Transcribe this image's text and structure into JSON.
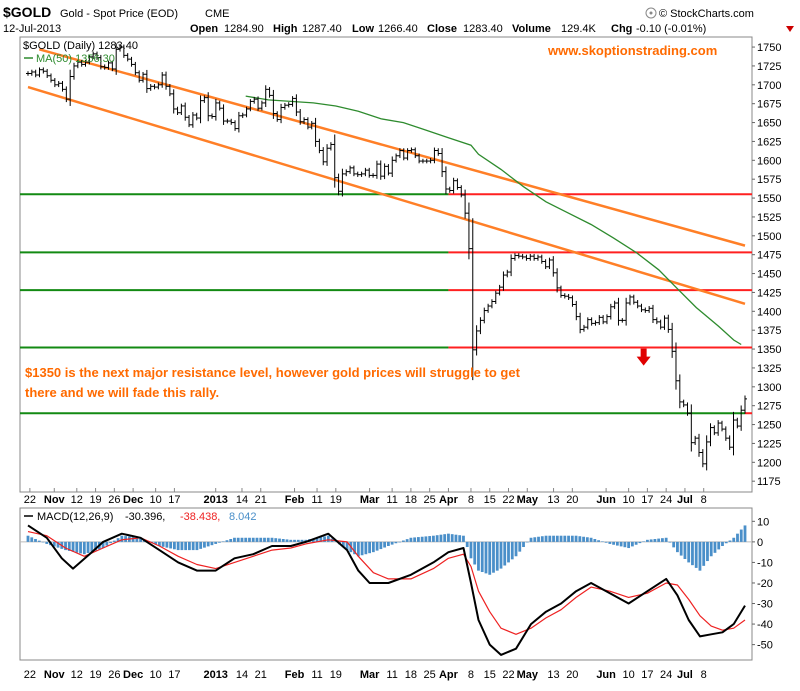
{
  "header": {
    "symbol": "$GOLD",
    "name": "Gold - Spot Price (EOD)",
    "exchange": "CME",
    "brand": "© StockCharts.com",
    "date": "12-Jul-2013",
    "open_label": "Open",
    "open": "1284.90",
    "high_label": "High",
    "high": "1287.40",
    "low_label": "Low",
    "low": "1266.40",
    "close_label": "Close",
    "close": "1283.40",
    "volume_label": "Volume",
    "volume": "129.4K",
    "chg_label": "Chg",
    "chg": "-0.10 (-0.01%)"
  },
  "legend": {
    "price": "$GOLD (Daily) 1283.40",
    "ma": "MA(50) 1356.30",
    "macd_name": "MACD(12,26,9)",
    "macd_val": "-30.396,",
    "signal_val": "-38.438,",
    "hist_val": "8.042"
  },
  "watermark": "www.skoptionstrading.com",
  "annotation": {
    "line1": "$1350 is the next major resistance level, however gold prices will struggle to get",
    "line2": "there and we will fade this rally."
  },
  "colors": {
    "price": "#000000",
    "ma": "#2e8b2e",
    "trend": "#ff7f27",
    "support": "#138a13",
    "resistance": "#ff2020",
    "arrow": "#e00000",
    "macd": "#000000",
    "signal": "#ee2222",
    "hist": "#4a8fc9",
    "annotation": "#ff6a00"
  },
  "chart_data": [
    {
      "type": "line",
      "title": "$GOLD (Daily) 1283.40",
      "y_axis": {
        "min": 1162,
        "max": 1762,
        "position": "right",
        "ticks": [
          1175,
          1200,
          1225,
          1250,
          1275,
          1300,
          1325,
          1350,
          1375,
          1400,
          1425,
          1450,
          1475,
          1500,
          1525,
          1550,
          1575,
          1600,
          1625,
          1650,
          1675,
          1700,
          1725,
          1750
        ]
      },
      "x_axis_labels": [
        {
          "label": "22",
          "t": 0.5
        },
        {
          "label": "Nov",
          "t": 7,
          "bold": true
        },
        {
          "label": "12",
          "t": 13
        },
        {
          "label": "19",
          "t": 18
        },
        {
          "label": "26",
          "t": 23
        },
        {
          "label": "Dec",
          "t": 28,
          "bold": true
        },
        {
          "label": "10",
          "t": 34
        },
        {
          "label": "17",
          "t": 39
        },
        {
          "label": "2013",
          "t": 50,
          "bold": true
        },
        {
          "label": "14",
          "t": 57
        },
        {
          "label": "21",
          "t": 62
        },
        {
          "label": "Feb",
          "t": 71,
          "bold": true
        },
        {
          "label": "11",
          "t": 77
        },
        {
          "label": "19",
          "t": 82
        },
        {
          "label": "Mar",
          "t": 91,
          "bold": true
        },
        {
          "label": "11",
          "t": 97
        },
        {
          "label": "18",
          "t": 102
        },
        {
          "label": "25",
          "t": 107
        },
        {
          "label": "Apr",
          "t": 112,
          "bold": true
        },
        {
          "label": "8",
          "t": 118
        },
        {
          "label": "15",
          "t": 123
        },
        {
          "label": "22",
          "t": 128
        },
        {
          "label": "May",
          "t": 133,
          "bold": true
        },
        {
          "label": "13",
          "t": 140
        },
        {
          "label": "20",
          "t": 145
        },
        {
          "label": "Jun",
          "t": 154,
          "bold": true
        },
        {
          "label": "10",
          "t": 160
        },
        {
          "label": "17",
          "t": 165
        },
        {
          "label": "24",
          "t": 170
        },
        {
          "label": "Jul",
          "t": 175,
          "bold": true
        },
        {
          "label": "8",
          "t": 180
        }
      ],
      "series": [
        {
          "key": "price",
          "style": "ohlc_close",
          "values": [
            1715,
            1717,
            1713,
            1720,
            1718,
            1712,
            1706,
            1700,
            1702,
            1694,
            1681,
            1711,
            1725,
            1730,
            1727,
            1730,
            1737,
            1741,
            1736,
            1724,
            1723,
            1729,
            1721,
            1747,
            1750,
            1739,
            1734,
            1727,
            1716,
            1706,
            1714,
            1695,
            1698,
            1697,
            1700,
            1713,
            1698,
            1688,
            1668,
            1663,
            1672,
            1657,
            1647,
            1660,
            1656,
            1679,
            1683,
            1659,
            1658,
            1676,
            1669,
            1652,
            1652,
            1650,
            1642,
            1659,
            1660,
            1668,
            1678,
            1681,
            1669,
            1676,
            1694,
            1686,
            1662,
            1654,
            1670,
            1673,
            1674,
            1682,
            1664,
            1651,
            1654,
            1644,
            1649,
            1625,
            1613,
            1598,
            1616,
            1621,
            1577,
            1559,
            1582,
            1585,
            1590,
            1582,
            1581,
            1582,
            1587,
            1580,
            1580,
            1595,
            1579,
            1592,
            1583,
            1600,
            1606,
            1613,
            1603,
            1613,
            1614,
            1606,
            1599,
            1599,
            1599,
            1600,
            1613,
            1609,
            1585,
            1562,
            1560,
            1573,
            1564,
            1554,
            1530,
            1483,
            1349,
            1374,
            1388,
            1401,
            1407,
            1413,
            1424,
            1432,
            1448,
            1452,
            1470,
            1474,
            1473,
            1472,
            1470,
            1473,
            1470,
            1472,
            1466,
            1459,
            1468,
            1451,
            1431,
            1421,
            1420,
            1418,
            1409,
            1393,
            1376,
            1379,
            1389,
            1384,
            1385,
            1392,
            1386,
            1393,
            1406,
            1411,
            1388,
            1388,
            1411,
            1419,
            1412,
            1407,
            1402,
            1401,
            1404,
            1389,
            1386,
            1379,
            1391,
            1376,
            1347,
            1308,
            1280,
            1276,
            1265,
            1226,
            1232,
            1213,
            1198,
            1227,
            1246,
            1239,
            1252,
            1244,
            1232,
            1220,
            1256,
            1248,
            1269,
            1284
          ]
        },
        {
          "key": "ma",
          "name": "MA(50) 1356.30",
          "points": [
            [
              58,
              1685
            ],
            [
              64,
              1680
            ],
            [
              70,
              1678
            ],
            [
              76,
              1676
            ],
            [
              82,
              1672
            ],
            [
              88,
              1665
            ],
            [
              94,
              1655
            ],
            [
              100,
              1650
            ],
            [
              106,
              1640
            ],
            [
              112,
              1630
            ],
            [
              118,
              1620
            ],
            [
              120,
              1608
            ],
            [
              126,
              1588
            ],
            [
              132,
              1565
            ],
            [
              138,
              1545
            ],
            [
              144,
              1530
            ],
            [
              150,
              1515
            ],
            [
              156,
              1497
            ],
            [
              162,
              1478
            ],
            [
              168,
              1455
            ],
            [
              173,
              1430
            ],
            [
              178,
              1405
            ],
            [
              184,
              1380
            ],
            [
              188,
              1362
            ],
            [
              190,
              1356
            ]
          ]
        }
      ],
      "trendlines": [
        {
          "key": "upper",
          "p1": [
            3,
            1747
          ],
          "p2": [
            191,
            1487
          ]
        },
        {
          "key": "lower",
          "p1": [
            0,
            1697
          ],
          "p2": [
            191,
            1410
          ]
        }
      ],
      "horizontal_levels": [
        {
          "value": 1555,
          "support_to_t": 112
        },
        {
          "value": 1478,
          "support_to_t": 112
        },
        {
          "value": 1428,
          "support_to_t": 112
        },
        {
          "value": 1352,
          "support_to_t": 112
        },
        {
          "value": 1265,
          "support_to_t": 191
        }
      ],
      "arrow": {
        "t": 164,
        "value": 1340
      }
    },
    {
      "type": "line",
      "title": "MACD(12,26,9)",
      "y_axis": {
        "min": -57,
        "max": 16,
        "position": "right",
        "ticks": [
          10,
          0,
          -10,
          -20,
          -30,
          -40,
          -50
        ]
      },
      "series": [
        {
          "key": "macd",
          "name": "MACD",
          "points": [
            [
              0,
              8
            ],
            [
              5,
              2
            ],
            [
              9,
              -8
            ],
            [
              12,
              -13
            ],
            [
              17,
              -5
            ],
            [
              20,
              0
            ],
            [
              25,
              4
            ],
            [
              30,
              2
            ],
            [
              35,
              -4
            ],
            [
              40,
              -10
            ],
            [
              45,
              -14
            ],
            [
              50,
              -14
            ],
            [
              55,
              -8
            ],
            [
              60,
              -6
            ],
            [
              65,
              -2
            ],
            [
              70,
              -2
            ],
            [
              74,
              0
            ],
            [
              80,
              4
            ],
            [
              85,
              -4
            ],
            [
              88,
              -14
            ],
            [
              91,
              -20
            ],
            [
              96,
              -20
            ],
            [
              102,
              -16
            ],
            [
              108,
              -10
            ],
            [
              112,
              -5
            ],
            [
              116,
              -3
            ],
            [
              118,
              -20
            ],
            [
              120,
              -38
            ],
            [
              123,
              -50
            ],
            [
              126,
              -55
            ],
            [
              130,
              -52
            ],
            [
              134,
              -40
            ],
            [
              138,
              -34
            ],
            [
              142,
              -30
            ],
            [
              146,
              -24
            ],
            [
              150,
              -20
            ],
            [
              155,
              -25
            ],
            [
              160,
              -30
            ],
            [
              165,
              -24
            ],
            [
              170,
              -18
            ],
            [
              173,
              -26
            ],
            [
              176,
              -38
            ],
            [
              179,
              -46
            ],
            [
              182,
              -45
            ],
            [
              185,
              -44
            ],
            [
              188,
              -40
            ],
            [
              191,
              -31
            ]
          ]
        },
        {
          "key": "signal",
          "name": "Signal",
          "points": [
            [
              0,
              5
            ],
            [
              5,
              3
            ],
            [
              10,
              -3
            ],
            [
              15,
              -7
            ],
            [
              20,
              -3
            ],
            [
              25,
              1
            ],
            [
              30,
              2
            ],
            [
              35,
              -2
            ],
            [
              40,
              -7
            ],
            [
              45,
              -11
            ],
            [
              50,
              -13
            ],
            [
              55,
              -10
            ],
            [
              60,
              -7
            ],
            [
              65,
              -4
            ],
            [
              70,
              -3
            ],
            [
              74,
              -1
            ],
            [
              80,
              1
            ],
            [
              85,
              0
            ],
            [
              88,
              -7
            ],
            [
              92,
              -15
            ],
            [
              96,
              -18
            ],
            [
              102,
              -18
            ],
            [
              108,
              -13
            ],
            [
              112,
              -8
            ],
            [
              116,
              -6
            ],
            [
              118,
              -12
            ],
            [
              120,
              -24
            ],
            [
              123,
              -34
            ],
            [
              126,
              -42
            ],
            [
              130,
              -45
            ],
            [
              134,
              -42
            ],
            [
              138,
              -37
            ],
            [
              142,
              -33
            ],
            [
              146,
              -27
            ],
            [
              150,
              -22
            ],
            [
              155,
              -24
            ],
            [
              160,
              -27
            ],
            [
              165,
              -25
            ],
            [
              170,
              -20
            ],
            [
              173,
              -21
            ],
            [
              176,
              -28
            ],
            [
              179,
              -36
            ],
            [
              182,
              -41
            ],
            [
              185,
              -43
            ],
            [
              188,
              -42
            ],
            [
              191,
              -38
            ]
          ]
        },
        {
          "key": "hist",
          "name": "Histogram",
          "style": "bars",
          "points": [
            [
              0,
              3
            ],
            [
              5,
              -1
            ],
            [
              10,
              -4
            ],
            [
              15,
              -6
            ],
            [
              20,
              -3
            ],
            [
              25,
              3
            ],
            [
              30,
              2
            ],
            [
              35,
              -2
            ],
            [
              40,
              -4
            ],
            [
              45,
              -4
            ],
            [
              50,
              -1
            ],
            [
              55,
              2
            ],
            [
              60,
              2
            ],
            [
              65,
              2
            ],
            [
              70,
              1
            ],
            [
              74,
              1
            ],
            [
              80,
              3
            ],
            [
              85,
              -4
            ],
            [
              88,
              -7
            ],
            [
              92,
              -5
            ],
            [
              96,
              -2
            ],
            [
              102,
              2
            ],
            [
              108,
              3
            ],
            [
              112,
              4
            ],
            [
              116,
              3
            ],
            [
              118,
              -8
            ],
            [
              120,
              -14
            ],
            [
              123,
              -16
            ],
            [
              126,
              -13
            ],
            [
              130,
              -7
            ],
            [
              134,
              2
            ],
            [
              138,
              3
            ],
            [
              142,
              3
            ],
            [
              146,
              3
            ],
            [
              150,
              2
            ],
            [
              155,
              -1
            ],
            [
              160,
              -3
            ],
            [
              165,
              1
            ],
            [
              170,
              2
            ],
            [
              173,
              -5
            ],
            [
              176,
              -10
            ],
            [
              179,
              -14
            ],
            [
              182,
              -7
            ],
            [
              185,
              -2
            ],
            [
              188,
              2
            ],
            [
              191,
              8
            ]
          ]
        }
      ]
    }
  ]
}
